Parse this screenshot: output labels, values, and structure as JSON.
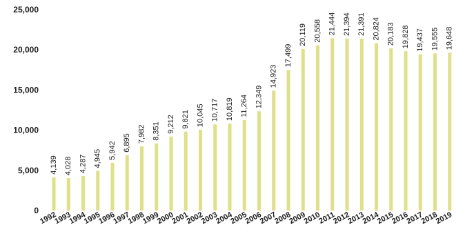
{
  "chart_data": {
    "type": "bar",
    "categories": [
      "1992",
      "1993",
      "1994",
      "1995",
      "1996",
      "1997",
      "1998",
      "1999",
      "2000",
      "2001",
      "2002",
      "2003",
      "2004",
      "2005",
      "2006",
      "2007",
      "2008",
      "2009",
      "2010",
      "2011",
      "2012",
      "2013",
      "2014",
      "2015",
      "2016",
      "2017",
      "2018",
      "2019"
    ],
    "values": [
      4139,
      4028,
      4287,
      4945,
      5942,
      6895,
      7982,
      8351,
      9212,
      9821,
      10045,
      10717,
      10819,
      11264,
      12349,
      14923,
      17499,
      20119,
      20558,
      21444,
      21394,
      21391,
      20824,
      20183,
      19828,
      19437,
      19555,
      19648
    ],
    "value_labels": [
      "4,139",
      "4,028",
      "4,287",
      "4,945",
      "5,942",
      "6,895",
      "7,982",
      "8,351",
      "9,212",
      "9,821",
      "10,045",
      "10,717",
      "10,819",
      "11,264",
      "12,349",
      "14,923",
      "17,499",
      "20,119",
      "20,558",
      "21,444",
      "21,394",
      "21,391",
      "20,824",
      "20,183",
      "19,828",
      "19,437",
      "19,555",
      "19,648"
    ],
    "yticks": [
      0,
      5000,
      10000,
      15000,
      20000,
      25000
    ],
    "ytick_labels": [
      "0",
      "5,000",
      "10,000",
      "15,000",
      "20,000",
      "25,000"
    ],
    "ylim": [
      0,
      25000
    ],
    "grid": false,
    "bar_color": "#dfe08a"
  }
}
